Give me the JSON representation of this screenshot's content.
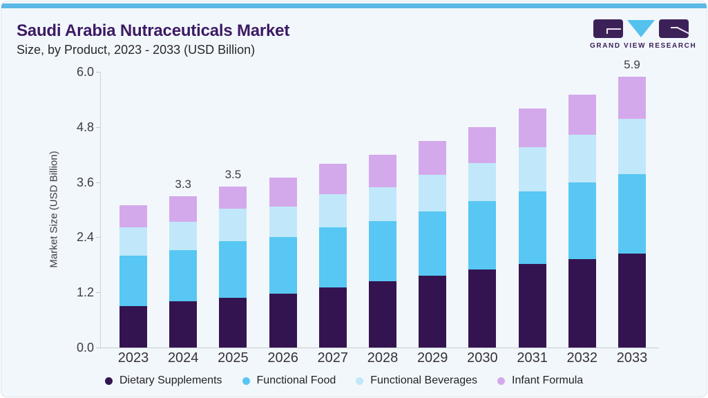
{
  "header": {
    "title": "Saudi Arabia Nutraceuticals Market",
    "subtitle": "Size, by Product, 2023 - 2033 (USD Billion)"
  },
  "logo": {
    "text": "GRAND VIEW RESEARCH",
    "purple": "#3c2159",
    "blue": "#55c2ee"
  },
  "colors": {
    "card_background": "#f2f7fb",
    "top_accent_bar": "#5cb8e7",
    "title_text": "#3c1a63",
    "axis_text": "#3c3c44",
    "axis_line": "#c6cbd1"
  },
  "chart_data": {
    "type": "bar",
    "stacked": true,
    "title": "Saudi Arabia Nutraceuticals Market Size, by Product, 2023 - 2033 (USD Billion)",
    "xlabel": "",
    "ylabel": "Market Size (USD Billion)",
    "ylim": [
      0,
      6
    ],
    "ytick_labels": [
      "0.0",
      "1.2",
      "2.4",
      "3.6",
      "4.8",
      "6.0"
    ],
    "grid": false,
    "legend_position": "bottom",
    "categories": [
      "2023",
      "2024",
      "2025",
      "2026",
      "2027",
      "2028",
      "2029",
      "2030",
      "2031",
      "2032",
      "2033"
    ],
    "series": [
      {
        "name": "Dietary Supplements",
        "color": "#341450",
        "values": [
          0.9,
          1.0,
          1.08,
          1.17,
          1.31,
          1.44,
          1.56,
          1.7,
          1.82,
          1.92,
          2.04
        ]
      },
      {
        "name": "Functional Food",
        "color": "#58c7f3",
        "values": [
          1.1,
          1.12,
          1.24,
          1.23,
          1.31,
          1.31,
          1.4,
          1.49,
          1.58,
          1.67,
          1.73
        ]
      },
      {
        "name": "Functional Beverages",
        "color": "#c1e8fa",
        "values": [
          0.61,
          0.61,
          0.71,
          0.67,
          0.72,
          0.74,
          0.8,
          0.82,
          0.96,
          1.04,
          1.2
        ]
      },
      {
        "name": "Infant Formula",
        "color": "#d4a9eb",
        "values": [
          0.49,
          0.57,
          0.47,
          0.63,
          0.66,
          0.71,
          0.74,
          0.79,
          0.84,
          0.87,
          0.93
        ]
      }
    ],
    "totals": [
      3.1,
      3.3,
      3.5,
      3.7,
      4.0,
      4.2,
      4.5,
      4.8,
      5.2,
      5.5,
      5.9
    ],
    "bar_value_labels": [
      "",
      "3.3",
      "3.5",
      "",
      "",
      "",
      "",
      "",
      "",
      "",
      "5.9"
    ]
  }
}
